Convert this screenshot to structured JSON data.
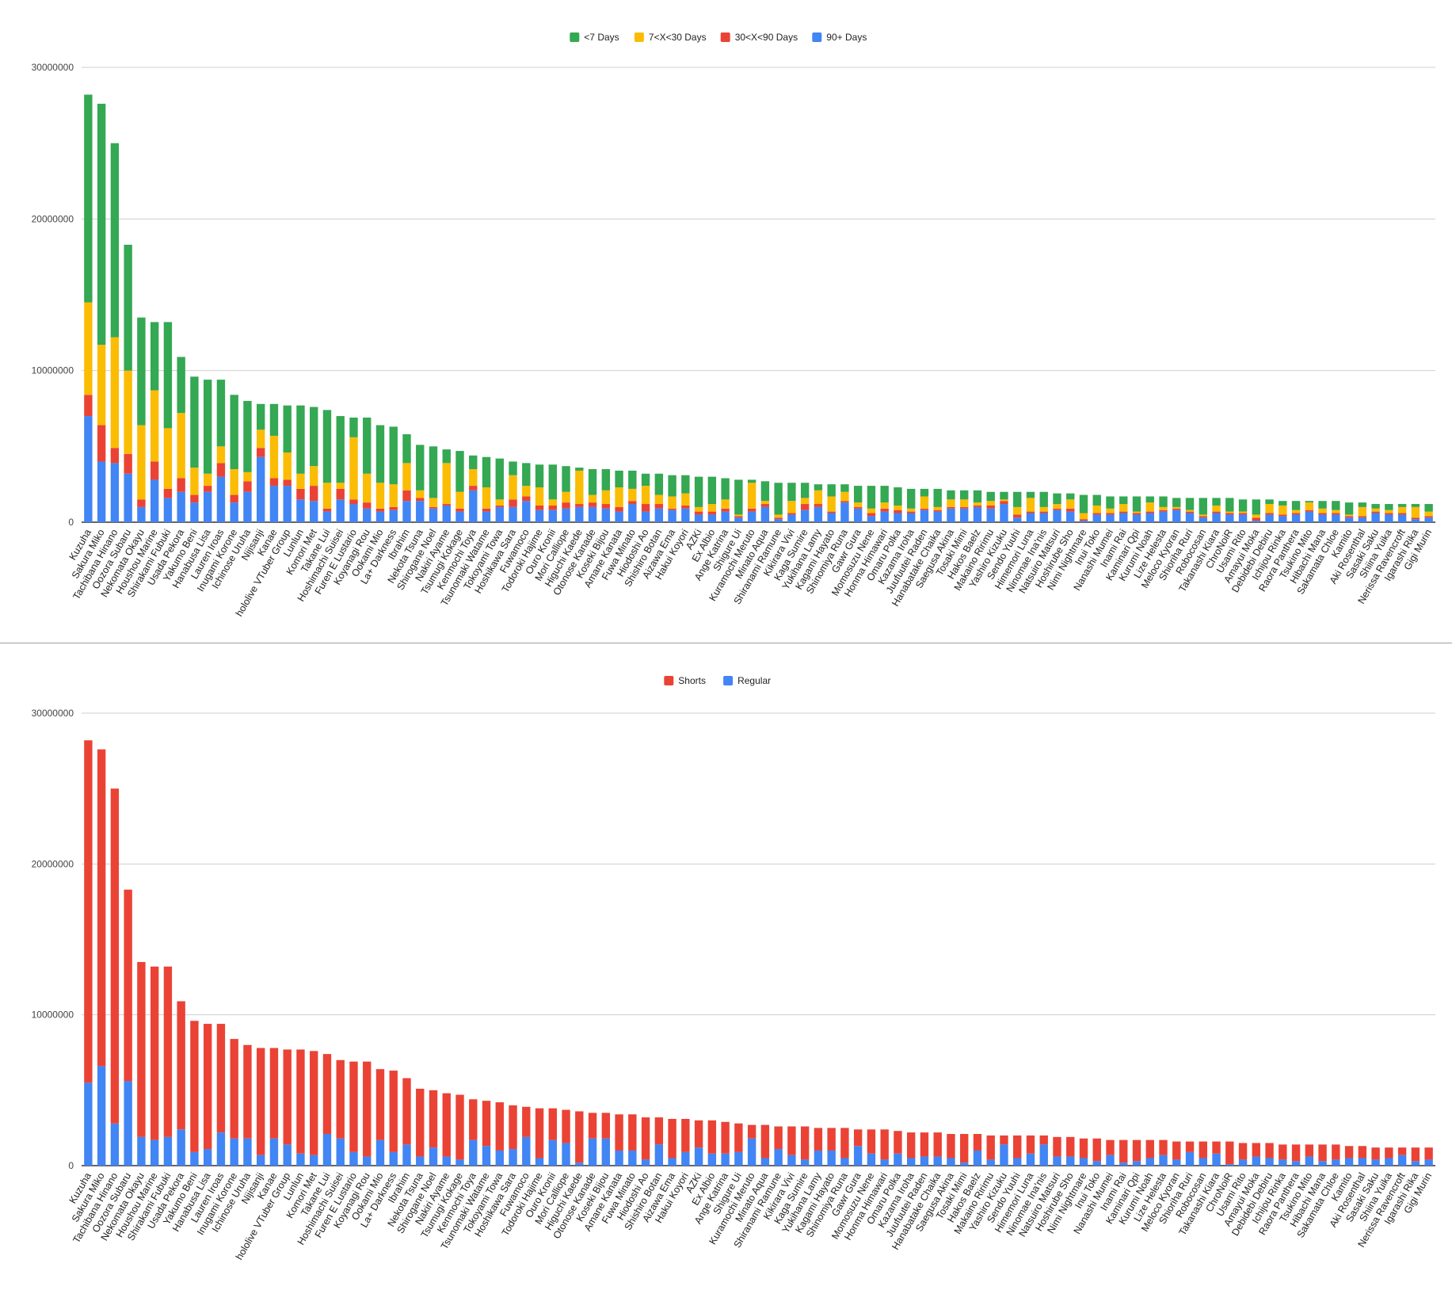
{
  "chart_data": [
    {
      "type": "bar",
      "stacked": true,
      "title": "",
      "xlabel": "",
      "ylabel": "",
      "ylim": [
        0,
        30000000
      ],
      "yticks": [
        "0",
        "10000000",
        "20000000",
        "30000000"
      ],
      "grid": true,
      "legend_position": "top-center",
      "categories": [
        "Kuzuha",
        "Sakura Miko",
        "Tachibana Hinano",
        "Oozora Subaru",
        "Nekomata Okayu",
        "Houshou Marine",
        "Shirakami Fubuki",
        "Usada Pekora",
        "Yakumo Beni",
        "Hanabusa Lisa",
        "Lauren Iroas",
        "Inugami Korone",
        "Ichinose Uruha",
        "Nijisanji",
        "Kanae",
        "hololive VTuber Group",
        "Lunlun",
        "Komori Met",
        "Takane Lui",
        "Hoshimachi Suisei",
        "Furen E Lustario",
        "Koyanagi Rou",
        "Ookami Mio",
        "La+ Darkness",
        "Ibrahim",
        "Nekota Tsuna",
        "Shirogane Noel",
        "Nakiri Ayame",
        "Tsumugi Kokage",
        "Kenmochi Toya",
        "Tsunomaki Watame",
        "Tokoyami Towa",
        "Hoshikawa Sara",
        "Fuwamoco",
        "Todoroki Hajime",
        "Ouro Kronii",
        "Mori Calliope",
        "Higuchi Kaede",
        "Otonose Kanade",
        "Koseki Bijou",
        "Amane Kanata",
        "Fuwa Minato",
        "Hiodoshi Ao",
        "Shishiro Botan",
        "Aizawa Ema",
        "Hakui Koyori",
        "AZKi",
        "Ex Albio",
        "Ange Katrina",
        "Shigure Ui",
        "Kuramochi Meruto",
        "Minato Aqua",
        "Shiranami Ramune",
        "Kikirara Vivi",
        "Kaga Sumire",
        "Yukihana Lamy",
        "Kagami Hayato",
        "Shinomiya Runa",
        "Gawr Gura",
        "Momosuzu Nene",
        "Honma Himawari",
        "Omaru Polka",
        "Kazama Iroha",
        "Juufuutei Raden",
        "Hanabatake Chaika",
        "Saegusa Akina",
        "Tosaki Mimi",
        "Hakos Baelz",
        "Makaino Ririmu",
        "Yashiro Kizuku",
        "Sendo Yuuhi",
        "Himemori Luna",
        "Ninomae Ina'nis",
        "Natsuiro Matsuri",
        "Hoshirube Sho",
        "Nimi Nightmare",
        "Inui Toko",
        "Nanashi Mumei",
        "Inami Rai",
        "Kaminari Qpi",
        "Kurumi Noah",
        "Lize Helesta",
        "Meloco Kyoran",
        "Shioriha Ruri",
        "Robocosan",
        "Takanashi Kiara",
        "ChroNoiR",
        "Usami Rito",
        "Amayui Moka",
        "Debidebi Debiru",
        "Ichijou Rinka",
        "Raora Panthera",
        "Tsukino Mito",
        "Hibachi Mana",
        "Sakamata Chloe",
        "Kamito",
        "Aki Rosenthal",
        "Sasaki Saku",
        "Shiina Yuika",
        "Nerissa Ravencroft",
        "Igarashi Rika",
        "Gigi Murin"
      ],
      "series": [
        {
          "name": "90+ Days",
          "color": "#4285f4",
          "values": [
            7.0,
            4.0,
            3.9,
            3.2,
            1.0,
            2.8,
            1.6,
            2.0,
            1.3,
            2.0,
            3.0,
            1.3,
            2.0,
            4.3,
            2.4,
            2.4,
            1.5,
            1.4,
            0.7,
            1.5,
            1.2,
            0.9,
            0.7,
            0.8,
            1.4,
            1.4,
            0.9,
            1.1,
            0.7,
            2.1,
            0.7,
            1.0,
            1.0,
            1.4,
            0.8,
            0.8,
            0.9,
            1.0,
            1.0,
            0.9,
            0.7,
            1.2,
            0.7,
            0.9,
            0.8,
            0.9,
            0.5,
            0.5,
            0.7,
            0.3,
            0.7,
            1.0,
            0.2,
            0.5,
            0.8,
            1.0,
            0.6,
            1.3,
            0.9,
            0.4,
            0.7,
            0.6,
            0.6,
            0.8,
            0.7,
            0.9,
            0.9,
            1.0,
            0.9,
            1.2,
            0.3,
            0.6,
            0.6,
            0.8,
            0.7,
            0.1,
            0.5,
            0.5,
            0.6,
            0.5,
            0.6,
            0.7,
            0.8,
            0.6,
            0.3,
            0.6,
            0.5,
            0.5,
            0.1,
            0.5,
            0.4,
            0.5,
            0.7,
            0.5,
            0.5,
            0.3,
            0.3,
            0.6,
            0.5,
            0.5,
            0.2,
            0.3
          ]
        },
        {
          "name": "30<X<90 Days",
          "color": "#ea4335",
          "values": [
            1.4,
            2.4,
            1.0,
            1.3,
            0.5,
            1.2,
            0.6,
            0.9,
            0.5,
            0.4,
            0.9,
            0.5,
            0.7,
            0.6,
            0.5,
            0.4,
            0.7,
            1.0,
            0.2,
            0.7,
            0.3,
            0.4,
            0.2,
            0.2,
            0.7,
            0.2,
            0.1,
            0.1,
            0.2,
            0.3,
            0.2,
            0.1,
            0.5,
            0.3,
            0.3,
            0.3,
            0.4,
            0.2,
            0.3,
            0.3,
            0.3,
            0.2,
            0.5,
            0.3,
            0.1,
            0.2,
            0.2,
            0.2,
            0.2,
            0.1,
            0.2,
            0.2,
            0.1,
            0.1,
            0.4,
            0.2,
            0.1,
            0.1,
            0.1,
            0.2,
            0.2,
            0.2,
            0.1,
            0.1,
            0.1,
            0.1,
            0.1,
            0.1,
            0.2,
            0.2,
            0.2,
            0.1,
            0.1,
            0.1,
            0.2,
            0.1,
            0.1,
            0.1,
            0.1,
            0.1,
            0.1,
            0.1,
            0.1,
            0.1,
            0.1,
            0.1,
            0.1,
            0.1,
            0.2,
            0.1,
            0.1,
            0.1,
            0.1,
            0.1,
            0.1,
            0.1,
            0.1,
            0.1,
            0.1,
            0.1,
            0.1,
            0.1
          ]
        },
        {
          "name": "7<X<30 Days",
          "color": "#fbbc04",
          "values": [
            6.1,
            5.3,
            7.3,
            5.5,
            4.9,
            4.7,
            4.0,
            4.3,
            1.8,
            0.8,
            1.1,
            1.7,
            0.6,
            1.2,
            2.8,
            1.8,
            1.0,
            1.3,
            1.7,
            0.4,
            4.1,
            1.9,
            1.7,
            1.5,
            1.8,
            0.5,
            0.6,
            2.7,
            1.1,
            1.1,
            1.4,
            0.4,
            1.6,
            0.7,
            1.2,
            0.4,
            0.7,
            2.2,
            0.5,
            0.9,
            1.3,
            0.8,
            1.2,
            0.6,
            0.8,
            0.8,
            0.3,
            0.5,
            0.6,
            0.1,
            1.7,
            0.2,
            0.2,
            0.8,
            0.4,
            0.9,
            1.0,
            0.6,
            0.3,
            0.3,
            0.4,
            0.3,
            0.2,
            0.8,
            0.2,
            0.5,
            0.5,
            0.2,
            0.3,
            0.1,
            0.5,
            0.9,
            0.3,
            0.3,
            0.6,
            0.4,
            0.5,
            0.3,
            0.5,
            0.1,
            0.6,
            0.2,
            0.1,
            0.1,
            0.1,
            0.4,
            0.1,
            0.1,
            0.2,
            0.6,
            0.6,
            0.2,
            0.5,
            0.3,
            0.2,
            0.1,
            0.6,
            0.2,
            0.2,
            0.4,
            0.7,
            0.3
          ]
        },
        {
          "name": "<7 Days",
          "color": "#34a853",
          "values": [
            13.7,
            15.9,
            12.8,
            8.3,
            7.1,
            4.5,
            7.0,
            3.7,
            6.0,
            6.2,
            4.4,
            4.9,
            4.7,
            1.7,
            2.1,
            3.1,
            4.5,
            3.9,
            4.8,
            4.4,
            1.3,
            3.7,
            3.8,
            3.8,
            1.9,
            3.0,
            3.4,
            0.9,
            2.7,
            0.9,
            2.0,
            2.7,
            0.9,
            1.5,
            1.5,
            2.3,
            1.7,
            0.2,
            1.7,
            1.4,
            1.1,
            1.2,
            0.8,
            1.4,
            1.4,
            1.2,
            2.0,
            1.8,
            1.4,
            2.3,
            0.2,
            1.3,
            2.1,
            1.2,
            1.0,
            0.4,
            0.8,
            0.5,
            1.1,
            1.5,
            1.1,
            1.2,
            1.3,
            0.5,
            1.2,
            0.6,
            0.6,
            0.8,
            0.6,
            0.5,
            1.0,
            0.4,
            1.0,
            0.7,
            0.4,
            1.2,
            0.7,
            0.8,
            0.5,
            1.0,
            0.4,
            0.7,
            0.6,
            0.8,
            1.1,
            0.5,
            0.9,
            0.8,
            1.0,
            0.3,
            0.3,
            0.6,
            0.1,
            0.5,
            0.6,
            0.8,
            0.3,
            0.3,
            0.4,
            0.2,
            0.2,
            0.5
          ]
        }
      ],
      "value_unit_multiplier": 1000000
    },
    {
      "type": "bar",
      "stacked": true,
      "title": "",
      "xlabel": "",
      "ylabel": "",
      "ylim": [
        0,
        30000000
      ],
      "yticks": [
        "0",
        "10000000",
        "20000000",
        "30000000"
      ],
      "grid": true,
      "legend_position": "top-center",
      "categories_same_as": 0,
      "series": [
        {
          "name": "Regular",
          "color": "#4285f4",
          "values": [
            5.5,
            6.6,
            2.8,
            5.6,
            1.9,
            1.7,
            1.9,
            2.4,
            0.9,
            1.1,
            2.2,
            1.8,
            1.8,
            0.7,
            1.8,
            1.4,
            0.8,
            0.7,
            2.1,
            1.8,
            0.9,
            0.6,
            1.7,
            0.9,
            1.4,
            0.6,
            1.2,
            0.6,
            0.4,
            1.7,
            1.3,
            1.0,
            1.1,
            1.9,
            0.5,
            1.7,
            1.5,
            0.2,
            1.8,
            1.8,
            1.0,
            1.0,
            0.4,
            1.4,
            0.5,
            0.9,
            1.2,
            0.8,
            0.8,
            0.9,
            1.8,
            0.5,
            1.1,
            0.7,
            0.4,
            1.0,
            1.0,
            0.5,
            1.3,
            0.8,
            0.4,
            0.8,
            0.5,
            0.6,
            0.6,
            0.5,
            0.2,
            1.0,
            0.4,
            1.4,
            0.5,
            0.8,
            1.4,
            0.6,
            0.6,
            0.5,
            0.3,
            0.7,
            0.2,
            0.3,
            0.5,
            0.7,
            0.4,
            0.9,
            0.5,
            0.8,
            0.1,
            0.4,
            0.6,
            0.5,
            0.4,
            0.3,
            0.6,
            0.3,
            0.4,
            0.5,
            0.5,
            0.4,
            0.5,
            0.7,
            0.3,
            0.4
          ]
        },
        {
          "name": "Shorts",
          "color": "#ea4335",
          "values": [
            22.7,
            21.0,
            22.2,
            12.7,
            11.6,
            11.5,
            11.3,
            8.5,
            8.7,
            8.3,
            7.2,
            6.6,
            6.2,
            7.1,
            6.0,
            6.3,
            6.9,
            6.9,
            5.3,
            5.2,
            6.0,
            6.3,
            4.7,
            5.4,
            4.4,
            4.5,
            3.8,
            4.2,
            4.3,
            2.7,
            3.0,
            3.2,
            2.9,
            2.0,
            3.3,
            2.1,
            2.2,
            3.4,
            1.7,
            1.7,
            2.4,
            2.4,
            2.8,
            1.8,
            2.6,
            2.2,
            1.8,
            2.2,
            2.1,
            1.9,
            0.9,
            2.2,
            1.5,
            1.9,
            2.2,
            1.5,
            1.5,
            2.0,
            1.1,
            1.6,
            2.0,
            1.5,
            1.7,
            1.6,
            1.6,
            1.6,
            1.9,
            1.1,
            1.6,
            0.6,
            1.5,
            1.2,
            0.6,
            1.3,
            1.3,
            1.3,
            1.5,
            1.0,
            1.5,
            1.4,
            1.2,
            1.0,
            1.2,
            0.7,
            1.1,
            0.8,
            1.5,
            1.1,
            0.9,
            1.0,
            1.0,
            1.1,
            0.8,
            1.1,
            1.0,
            0.8,
            0.8,
            0.8,
            0.7,
            0.5,
            0.9,
            0.8
          ]
        }
      ],
      "value_unit_multiplier": 1000000
    }
  ]
}
